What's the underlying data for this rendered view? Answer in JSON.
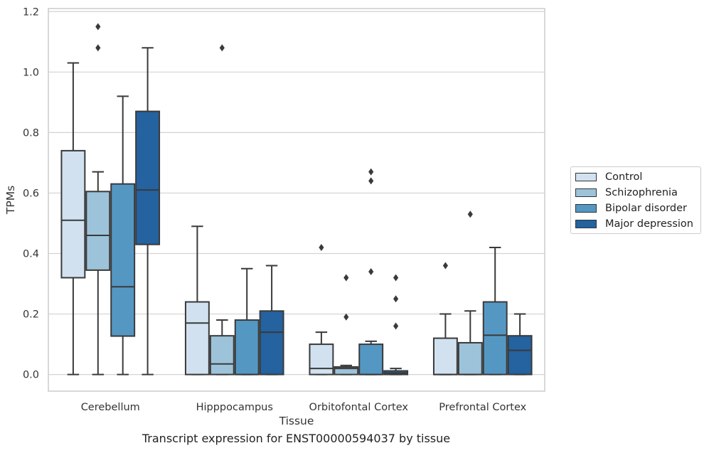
{
  "chart_data": {
    "type": "box",
    "xlabel": "Tissue",
    "ylabel": "TPMs",
    "caption": "Transcript expression for ENST00000594037 by tissue",
    "categories": [
      "Cerebellum",
      "Hipppocampus",
      "Orbitofontal Cortex",
      "Prefrontal Cortex"
    ],
    "ylim": [
      -0.055,
      1.21
    ],
    "yticks": [
      0.0,
      0.2,
      0.4,
      0.6,
      0.8,
      1.0,
      1.2
    ],
    "ytick_labels": [
      "0.0",
      "0.2",
      "0.4",
      "0.6",
      "0.8",
      "1.0",
      "1.2"
    ],
    "grid": "horizontal",
    "legend_position": "right",
    "series": [
      {
        "name": "Control",
        "color": "#d1e1f0",
        "boxes": [
          {
            "whisker_low": 0.0,
            "q1": 0.32,
            "median": 0.51,
            "q3": 0.74,
            "whisker_high": 1.03,
            "outliers": []
          },
          {
            "whisker_low": 0.0,
            "q1": 0.0,
            "median": 0.17,
            "q3": 0.24,
            "whisker_high": 0.49,
            "outliers": []
          },
          {
            "whisker_low": 0.0,
            "q1": 0.0,
            "median": 0.02,
            "q3": 0.1,
            "whisker_high": 0.14,
            "outliers": [
              0.42
            ]
          },
          {
            "whisker_low": 0.0,
            "q1": 0.0,
            "median": 0.0,
            "q3": 0.12,
            "whisker_high": 0.2,
            "outliers": [
              0.36
            ]
          }
        ]
      },
      {
        "name": "Schizophrenia",
        "color": "#9dc3da",
        "boxes": [
          {
            "whisker_low": 0.0,
            "q1": 0.345,
            "median": 0.46,
            "q3": 0.605,
            "whisker_high": 0.67,
            "outliers": [
              1.08,
              1.15
            ]
          },
          {
            "whisker_low": 0.0,
            "q1": 0.0,
            "median": 0.035,
            "q3": 0.128,
            "whisker_high": 0.18,
            "outliers": [
              1.08
            ]
          },
          {
            "whisker_low": 0.0,
            "q1": 0.0,
            "median": 0.02,
            "q3": 0.025,
            "whisker_high": 0.03,
            "outliers": [
              0.19,
              0.32
            ]
          },
          {
            "whisker_low": 0.0,
            "q1": 0.0,
            "median": 0.0,
            "q3": 0.105,
            "whisker_high": 0.21,
            "outliers": [
              0.53
            ]
          }
        ]
      },
      {
        "name": "Bipolar disorder",
        "color": "#5597c3",
        "boxes": [
          {
            "whisker_low": 0.0,
            "q1": 0.127,
            "median": 0.29,
            "q3": 0.63,
            "whisker_high": 0.92,
            "outliers": []
          },
          {
            "whisker_low": 0.0,
            "q1": 0.0,
            "median": 0.0,
            "q3": 0.18,
            "whisker_high": 0.35,
            "outliers": []
          },
          {
            "whisker_low": 0.0,
            "q1": 0.0,
            "median": 0.0,
            "q3": 0.1,
            "whisker_high": 0.11,
            "outliers": [
              0.34,
              0.64,
              0.67
            ]
          },
          {
            "whisker_low": 0.0,
            "q1": 0.0,
            "median": 0.13,
            "q3": 0.24,
            "whisker_high": 0.42,
            "outliers": []
          }
        ]
      },
      {
        "name": "Major depression",
        "color": "#2462a0",
        "boxes": [
          {
            "whisker_low": 0.0,
            "q1": 0.43,
            "median": 0.61,
            "q3": 0.87,
            "whisker_high": 1.08,
            "outliers": []
          },
          {
            "whisker_low": 0.0,
            "q1": 0.0,
            "median": 0.14,
            "q3": 0.21,
            "whisker_high": 0.36,
            "outliers": []
          },
          {
            "whisker_low": 0.0,
            "q1": 0.0,
            "median": 0.005,
            "q3": 0.012,
            "whisker_high": 0.02,
            "outliers": [
              0.16,
              0.25,
              0.32
            ]
          },
          {
            "whisker_low": 0.0,
            "q1": 0.0,
            "median": 0.08,
            "q3": 0.128,
            "whisker_high": 0.2,
            "outliers": []
          }
        ]
      }
    ]
  }
}
